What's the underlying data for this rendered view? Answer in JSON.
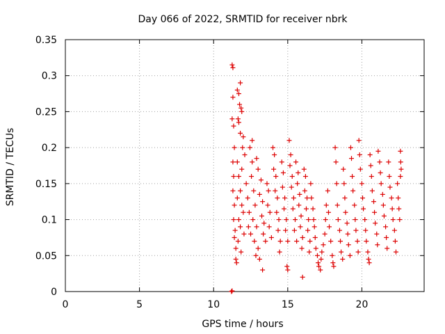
{
  "chart_data": {
    "type": "scatter",
    "title": "Day 066 of 2022, SRMTID for receiver nbrk",
    "xlabel": "GPS time / hours",
    "ylabel": "SRMTID / TECUs",
    "xlim": [
      0,
      24.2
    ],
    "ylim": [
      0,
      0.35
    ],
    "x_ticks": [
      0,
      5,
      10,
      15,
      20
    ],
    "x_tick_labels": [
      "0",
      "5",
      "10",
      "15",
      "20"
    ],
    "y_ticks": [
      0,
      0.05,
      0.1,
      0.15,
      0.2,
      0.25,
      0.3,
      0.35
    ],
    "y_tick_labels": [
      "0",
      "0.05",
      "0.1",
      "0.15",
      "0.2",
      "0.25",
      "0.3",
      "0.35"
    ],
    "grid": true,
    "marker": "+",
    "marker_color": "#dd0000",
    "series": [
      {
        "name": "SRMTID",
        "points": [
          [
            11.2,
            0.0
          ],
          [
            11.25,
            0.001
          ],
          [
            11.25,
            0.315
          ],
          [
            11.3,
            0.311
          ],
          [
            11.3,
            0.27
          ],
          [
            11.25,
            0.24
          ],
          [
            11.35,
            0.23
          ],
          [
            11.4,
            0.2
          ],
          [
            11.3,
            0.18
          ],
          [
            11.35,
            0.16
          ],
          [
            11.3,
            0.14
          ],
          [
            11.4,
            0.12
          ],
          [
            11.35,
            0.1
          ],
          [
            11.45,
            0.085
          ],
          [
            11.4,
            0.075
          ],
          [
            11.5,
            0.06
          ],
          [
            11.5,
            0.045
          ],
          [
            11.55,
            0.04
          ],
          [
            11.6,
            0.28
          ],
          [
            11.7,
            0.275
          ],
          [
            11.8,
            0.29
          ],
          [
            11.75,
            0.26
          ],
          [
            11.85,
            0.255
          ],
          [
            11.9,
            0.25
          ],
          [
            11.65,
            0.24
          ],
          [
            11.7,
            0.235
          ],
          [
            11.8,
            0.22
          ],
          [
            12.0,
            0.215
          ],
          [
            11.95,
            0.2
          ],
          [
            12.1,
            0.19
          ],
          [
            11.6,
            0.18
          ],
          [
            11.9,
            0.17
          ],
          [
            11.7,
            0.16
          ],
          [
            11.8,
            0.14
          ],
          [
            11.6,
            0.13
          ],
          [
            11.9,
            0.12
          ],
          [
            12.0,
            0.11
          ],
          [
            11.7,
            0.1
          ],
          [
            11.8,
            0.09
          ],
          [
            12.05,
            0.08
          ],
          [
            11.65,
            0.07
          ],
          [
            11.85,
            0.055
          ],
          [
            12.2,
            0.15
          ],
          [
            12.3,
            0.13
          ],
          [
            12.4,
            0.11
          ],
          [
            12.35,
            0.09
          ],
          [
            12.5,
            0.08
          ],
          [
            12.45,
            0.2
          ],
          [
            12.6,
            0.18
          ],
          [
            12.55,
            0.16
          ],
          [
            12.7,
            0.14
          ],
          [
            12.8,
            0.12
          ],
          [
            12.65,
            0.1
          ],
          [
            12.9,
            0.09
          ],
          [
            12.75,
            0.07
          ],
          [
            13.0,
            0.06
          ],
          [
            12.85,
            0.05
          ],
          [
            13.1,
            0.045
          ],
          [
            12.6,
            0.21
          ],
          [
            12.9,
            0.185
          ],
          [
            13.0,
            0.17
          ],
          [
            13.2,
            0.155
          ],
          [
            13.1,
            0.135
          ],
          [
            13.3,
            0.125
          ],
          [
            13.25,
            0.105
          ],
          [
            13.4,
            0.095
          ],
          [
            13.35,
            0.08
          ],
          [
            13.5,
            0.07
          ],
          [
            13.3,
            0.03
          ],
          [
            13.6,
            0.15
          ],
          [
            13.7,
            0.14
          ],
          [
            13.65,
            0.12
          ],
          [
            13.8,
            0.11
          ],
          [
            13.75,
            0.09
          ],
          [
            13.9,
            0.075
          ],
          [
            14.0,
            0.2
          ],
          [
            14.1,
            0.19
          ],
          [
            14.05,
            0.17
          ],
          [
            14.2,
            0.16
          ],
          [
            14.15,
            0.14
          ],
          [
            14.3,
            0.13
          ],
          [
            14.25,
            0.11
          ],
          [
            14.4,
            0.1
          ],
          [
            14.35,
            0.085
          ],
          [
            14.5,
            0.07
          ],
          [
            14.45,
            0.055
          ],
          [
            14.6,
            0.18
          ],
          [
            14.7,
            0.165
          ],
          [
            14.65,
            0.145
          ],
          [
            14.8,
            0.13
          ],
          [
            14.75,
            0.115
          ],
          [
            14.9,
            0.1
          ],
          [
            14.85,
            0.085
          ],
          [
            15.0,
            0.07
          ],
          [
            14.95,
            0.035
          ],
          [
            15.0,
            0.03
          ],
          [
            15.1,
            0.21
          ],
          [
            15.2,
            0.19
          ],
          [
            15.15,
            0.175
          ],
          [
            15.3,
            0.16
          ],
          [
            15.25,
            0.145
          ],
          [
            15.4,
            0.13
          ],
          [
            15.35,
            0.115
          ],
          [
            15.5,
            0.1
          ],
          [
            15.45,
            0.085
          ],
          [
            15.6,
            0.07
          ],
          [
            15.55,
            0.18
          ],
          [
            15.7,
            0.165
          ],
          [
            15.65,
            0.15
          ],
          [
            15.8,
            0.135
          ],
          [
            15.75,
            0.12
          ],
          [
            15.9,
            0.105
          ],
          [
            15.85,
            0.09
          ],
          [
            16.0,
            0.075
          ],
          [
            15.95,
            0.06
          ],
          [
            16.0,
            0.02
          ],
          [
            16.1,
            0.17
          ],
          [
            16.2,
            0.16
          ],
          [
            16.15,
            0.14
          ],
          [
            16.3,
            0.13
          ],
          [
            16.25,
            0.115
          ],
          [
            16.4,
            0.1
          ],
          [
            16.35,
            0.085
          ],
          [
            16.5,
            0.07
          ],
          [
            16.45,
            0.055
          ],
          [
            16.55,
            0.15
          ],
          [
            16.6,
            0.13
          ],
          [
            16.7,
            0.115
          ],
          [
            16.75,
            0.1
          ],
          [
            16.8,
            0.09
          ],
          [
            16.85,
            0.075
          ],
          [
            16.9,
            0.06
          ],
          [
            17.0,
            0.05
          ],
          [
            17.05,
            0.04
          ],
          [
            17.1,
            0.035
          ],
          [
            17.2,
            0.03
          ],
          [
            17.25,
            0.045
          ],
          [
            17.3,
            0.055
          ],
          [
            17.4,
            0.065
          ],
          [
            17.5,
            0.08
          ],
          [
            17.55,
            0.1
          ],
          [
            17.6,
            0.12
          ],
          [
            17.7,
            0.14
          ],
          [
            17.75,
            0.11
          ],
          [
            17.8,
            0.09
          ],
          [
            17.9,
            0.07
          ],
          [
            18.0,
            0.05
          ],
          [
            18.05,
            0.04
          ],
          [
            18.1,
            0.035
          ],
          [
            18.2,
            0.2
          ],
          [
            18.25,
            0.18
          ],
          [
            18.3,
            0.15
          ],
          [
            18.35,
            0.12
          ],
          [
            18.4,
            0.1
          ],
          [
            18.5,
            0.085
          ],
          [
            18.55,
            0.07
          ],
          [
            18.6,
            0.055
          ],
          [
            18.7,
            0.045
          ],
          [
            18.75,
            0.17
          ],
          [
            18.8,
            0.15
          ],
          [
            18.85,
            0.13
          ],
          [
            18.9,
            0.11
          ],
          [
            19.0,
            0.095
          ],
          [
            19.05,
            0.08
          ],
          [
            19.1,
            0.065
          ],
          [
            19.2,
            0.05
          ],
          [
            19.25,
            0.2
          ],
          [
            19.3,
            0.185
          ],
          [
            19.35,
            0.16
          ],
          [
            19.4,
            0.14
          ],
          [
            19.5,
            0.12
          ],
          [
            19.55,
            0.1
          ],
          [
            19.6,
            0.085
          ],
          [
            19.7,
            0.07
          ],
          [
            19.75,
            0.055
          ],
          [
            19.8,
            0.21
          ],
          [
            19.85,
            0.19
          ],
          [
            19.9,
            0.17
          ],
          [
            20.0,
            0.15
          ],
          [
            20.05,
            0.13
          ],
          [
            20.1,
            0.115
          ],
          [
            20.2,
            0.1
          ],
          [
            20.25,
            0.085
          ],
          [
            20.3,
            0.07
          ],
          [
            20.4,
            0.055
          ],
          [
            20.45,
            0.045
          ],
          [
            20.5,
            0.04
          ],
          [
            20.55,
            0.19
          ],
          [
            20.6,
            0.175
          ],
          [
            20.65,
            0.16
          ],
          [
            20.7,
            0.14
          ],
          [
            20.8,
            0.125
          ],
          [
            20.85,
            0.11
          ],
          [
            20.9,
            0.095
          ],
          [
            21.0,
            0.08
          ],
          [
            21.05,
            0.065
          ],
          [
            21.1,
            0.195
          ],
          [
            21.2,
            0.18
          ],
          [
            21.25,
            0.165
          ],
          [
            21.3,
            0.15
          ],
          [
            21.4,
            0.135
          ],
          [
            21.45,
            0.12
          ],
          [
            21.5,
            0.105
          ],
          [
            21.6,
            0.09
          ],
          [
            21.65,
            0.075
          ],
          [
            21.7,
            0.06
          ],
          [
            21.8,
            0.18
          ],
          [
            21.85,
            0.16
          ],
          [
            21.9,
            0.145
          ],
          [
            22.0,
            0.13
          ],
          [
            22.05,
            0.115
          ],
          [
            22.1,
            0.1
          ],
          [
            22.2,
            0.085
          ],
          [
            22.25,
            0.07
          ],
          [
            22.3,
            0.055
          ],
          [
            22.4,
            0.15
          ],
          [
            22.45,
            0.13
          ],
          [
            22.5,
            0.115
          ],
          [
            22.55,
            0.1
          ],
          [
            22.6,
            0.195
          ],
          [
            22.62,
            0.18
          ],
          [
            22.65,
            0.17
          ],
          [
            22.6,
            0.16
          ]
        ]
      }
    ]
  }
}
